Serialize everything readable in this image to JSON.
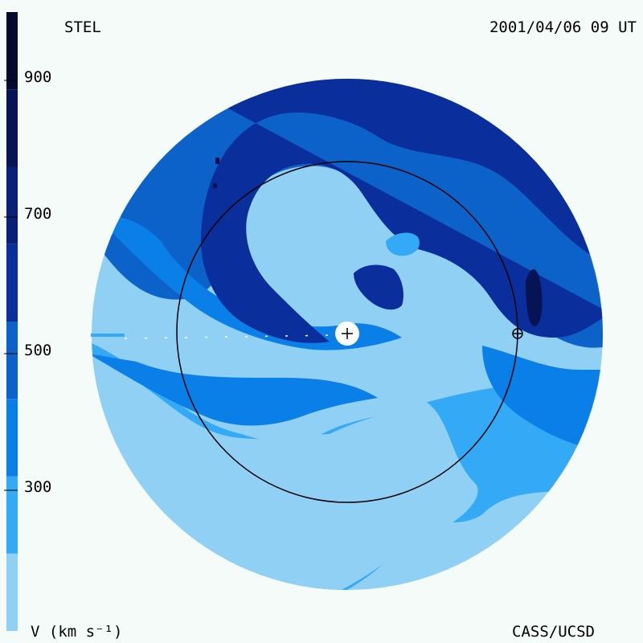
{
  "header": {
    "source": "STEL",
    "timestamp": "2001/04/06 09 UT"
  },
  "footer": {
    "credit": "CASS/UCSD"
  },
  "colorbar": {
    "unit_label": "V (km s⁻¹)",
    "tick_labels": [
      "900",
      "700",
      "500",
      "300"
    ],
    "range": [
      200,
      1000
    ],
    "bands": [
      {
        "from": 200,
        "to": 300,
        "color": "#90d0f5"
      },
      {
        "from": 300,
        "to": 400,
        "color": "#34a9f5"
      },
      {
        "from": 400,
        "to": 500,
        "color": "#0a7fe8"
      },
      {
        "from": 500,
        "to": 600,
        "color": "#0d62c9"
      },
      {
        "from": 600,
        "to": 700,
        "color": "#0a2f9c"
      },
      {
        "from": 700,
        "to": 800,
        "color": "#091f78"
      },
      {
        "from": 800,
        "to": 900,
        "color": "#061456"
      },
      {
        "from": 900,
        "to": 1000,
        "color": "#030a2e"
      }
    ]
  },
  "map": {
    "type": "solar-wind-velocity-ecliptic-view",
    "sun_symbol": "+",
    "earth_symbol": "⊕",
    "colors": {
      "background": "#f4fbf8",
      "orbit": "#000000"
    }
  }
}
